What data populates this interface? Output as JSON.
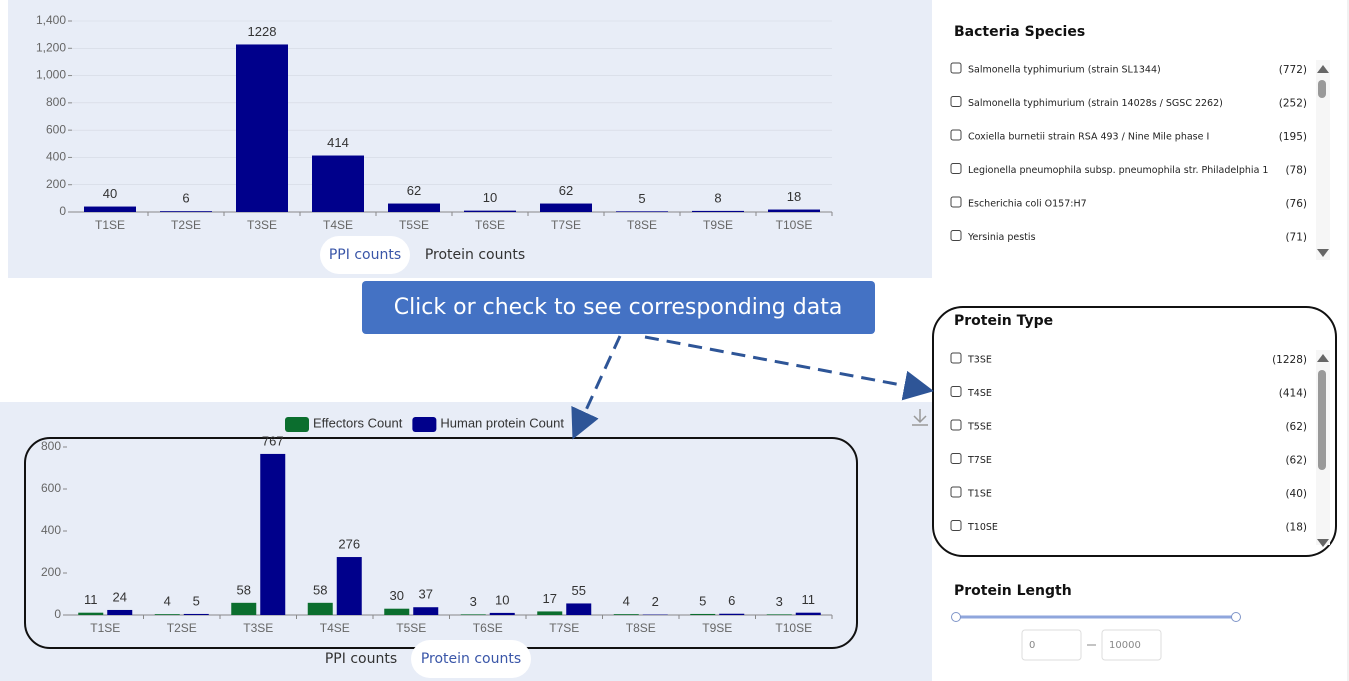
{
  "chart_data": [
    {
      "type": "bar",
      "categories": [
        "T1SE",
        "T2SE",
        "T3SE",
        "T4SE",
        "T5SE",
        "T6SE",
        "T7SE",
        "T8SE",
        "T9SE",
        "T10SE"
      ],
      "values": [
        40,
        6,
        1228,
        414,
        62,
        10,
        62,
        5,
        8,
        18
      ],
      "color": "#00008b",
      "ylim": [
        0,
        1400
      ],
      "yticks": [
        0,
        200,
        400,
        600,
        800,
        {
          "value": 1000,
          "label": "1,000"
        },
        {
          "value": 1200,
          "label": "1,200"
        },
        {
          "value": 1400,
          "label": "1,400"
        }
      ],
      "grid": true,
      "tabs": [
        "PPI counts",
        "Protein counts"
      ],
      "active_tab": 0
    },
    {
      "type": "grouped_bar",
      "categories": [
        "T1SE",
        "T2SE",
        "T3SE",
        "T4SE",
        "T5SE",
        "T6SE",
        "T7SE",
        "T8SE",
        "T9SE",
        "T10SE"
      ],
      "series": [
        {
          "name": "Effectors Count",
          "color": "#0b6e2e",
          "values": [
            11,
            4,
            58,
            58,
            30,
            3,
            17,
            4,
            5,
            3
          ]
        },
        {
          "name": "Human protein Count",
          "color": "#00008b",
          "values": [
            24,
            5,
            767,
            276,
            37,
            10,
            55,
            2,
            6,
            11
          ]
        }
      ],
      "ylim": [
        0,
        800
      ],
      "yticks": [
        0,
        200,
        400,
        600,
        800
      ],
      "grid": false,
      "legend": "top",
      "tabs": [
        "PPI counts",
        "Protein counts"
      ],
      "active_tab": 1
    }
  ],
  "callout": "Click or check to see corresponding data",
  "sidebar": {
    "bacteria_species": {
      "title": "Bacteria Species",
      "items": [
        {
          "label": "Salmonella typhimurium (strain SL1344)",
          "count": "(772)"
        },
        {
          "label": "Salmonella typhimurium (strain 14028s / SGSC 2262)",
          "count": "(252)"
        },
        {
          "label": "Coxiella burnetii strain RSA 493 / Nine Mile phase I",
          "count": "(195)"
        },
        {
          "label": "Legionella pneumophila subsp. pneumophila str. Philadelphia 1",
          "count": "(78)"
        },
        {
          "label": "Escherichia coli O157:H7",
          "count": "(76)"
        },
        {
          "label": "Yersinia pestis",
          "count": "(71)"
        }
      ]
    },
    "protein_type": {
      "title": "Protein Type",
      "items": [
        {
          "label": "T3SE",
          "count": "(1228)"
        },
        {
          "label": "T4SE",
          "count": "(414)"
        },
        {
          "label": "T5SE",
          "count": "(62)"
        },
        {
          "label": "T7SE",
          "count": "(62)"
        },
        {
          "label": "T1SE",
          "count": "(40)"
        },
        {
          "label": "T10SE",
          "count": "(18)"
        }
      ]
    },
    "protein_length": {
      "title": "Protein Length",
      "min": "0",
      "max": "10000"
    }
  }
}
